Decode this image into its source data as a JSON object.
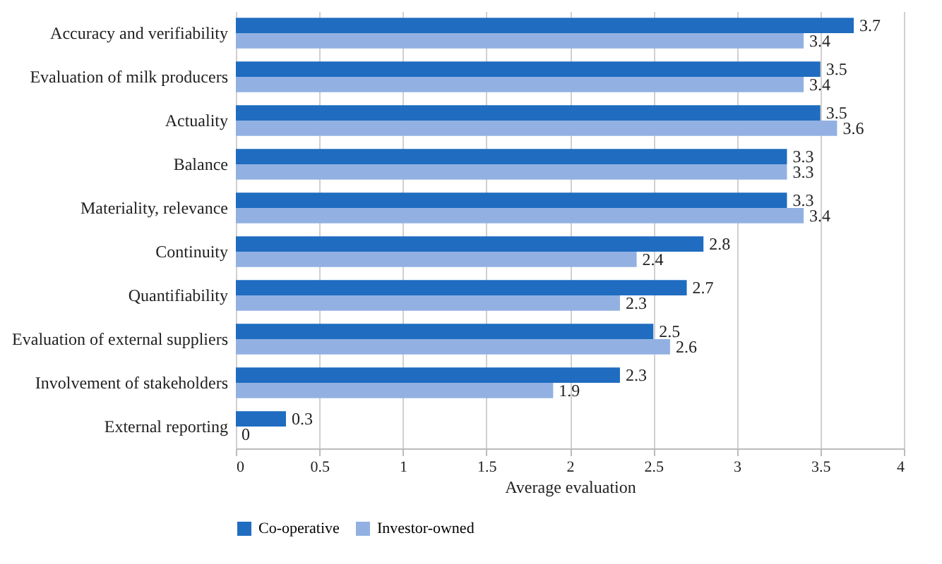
{
  "chart_data": {
    "type": "bar",
    "orientation": "horizontal",
    "xlabel": "Average evaluation",
    "categories": [
      "Accuracy and verifiability",
      "Evaluation of milk producers",
      "Actuality",
      "Balance",
      "Materiality, relevance",
      "Continuity",
      "Quantifiability",
      "Evaluation of external suppliers",
      "Involvement of stakeholders",
      "External reporting"
    ],
    "series": [
      {
        "name": "Co-operative",
        "color": "#1f6cc0",
        "values": [
          3.7,
          3.5,
          3.5,
          3.3,
          3.3,
          2.8,
          2.7,
          2.5,
          2.3,
          0.3
        ]
      },
      {
        "name": "Investor-owned",
        "color": "#92b1e2",
        "values": [
          3.4,
          3.4,
          3.6,
          3.3,
          3.4,
          2.4,
          2.3,
          2.6,
          1.9,
          0
        ]
      }
    ],
    "xlim": [
      0,
      4
    ],
    "xticks": [
      0,
      0.5,
      1,
      1.5,
      2,
      2.5,
      3,
      3.5,
      4
    ],
    "grid": "x",
    "legend": "bottom",
    "data_labels": true
  }
}
